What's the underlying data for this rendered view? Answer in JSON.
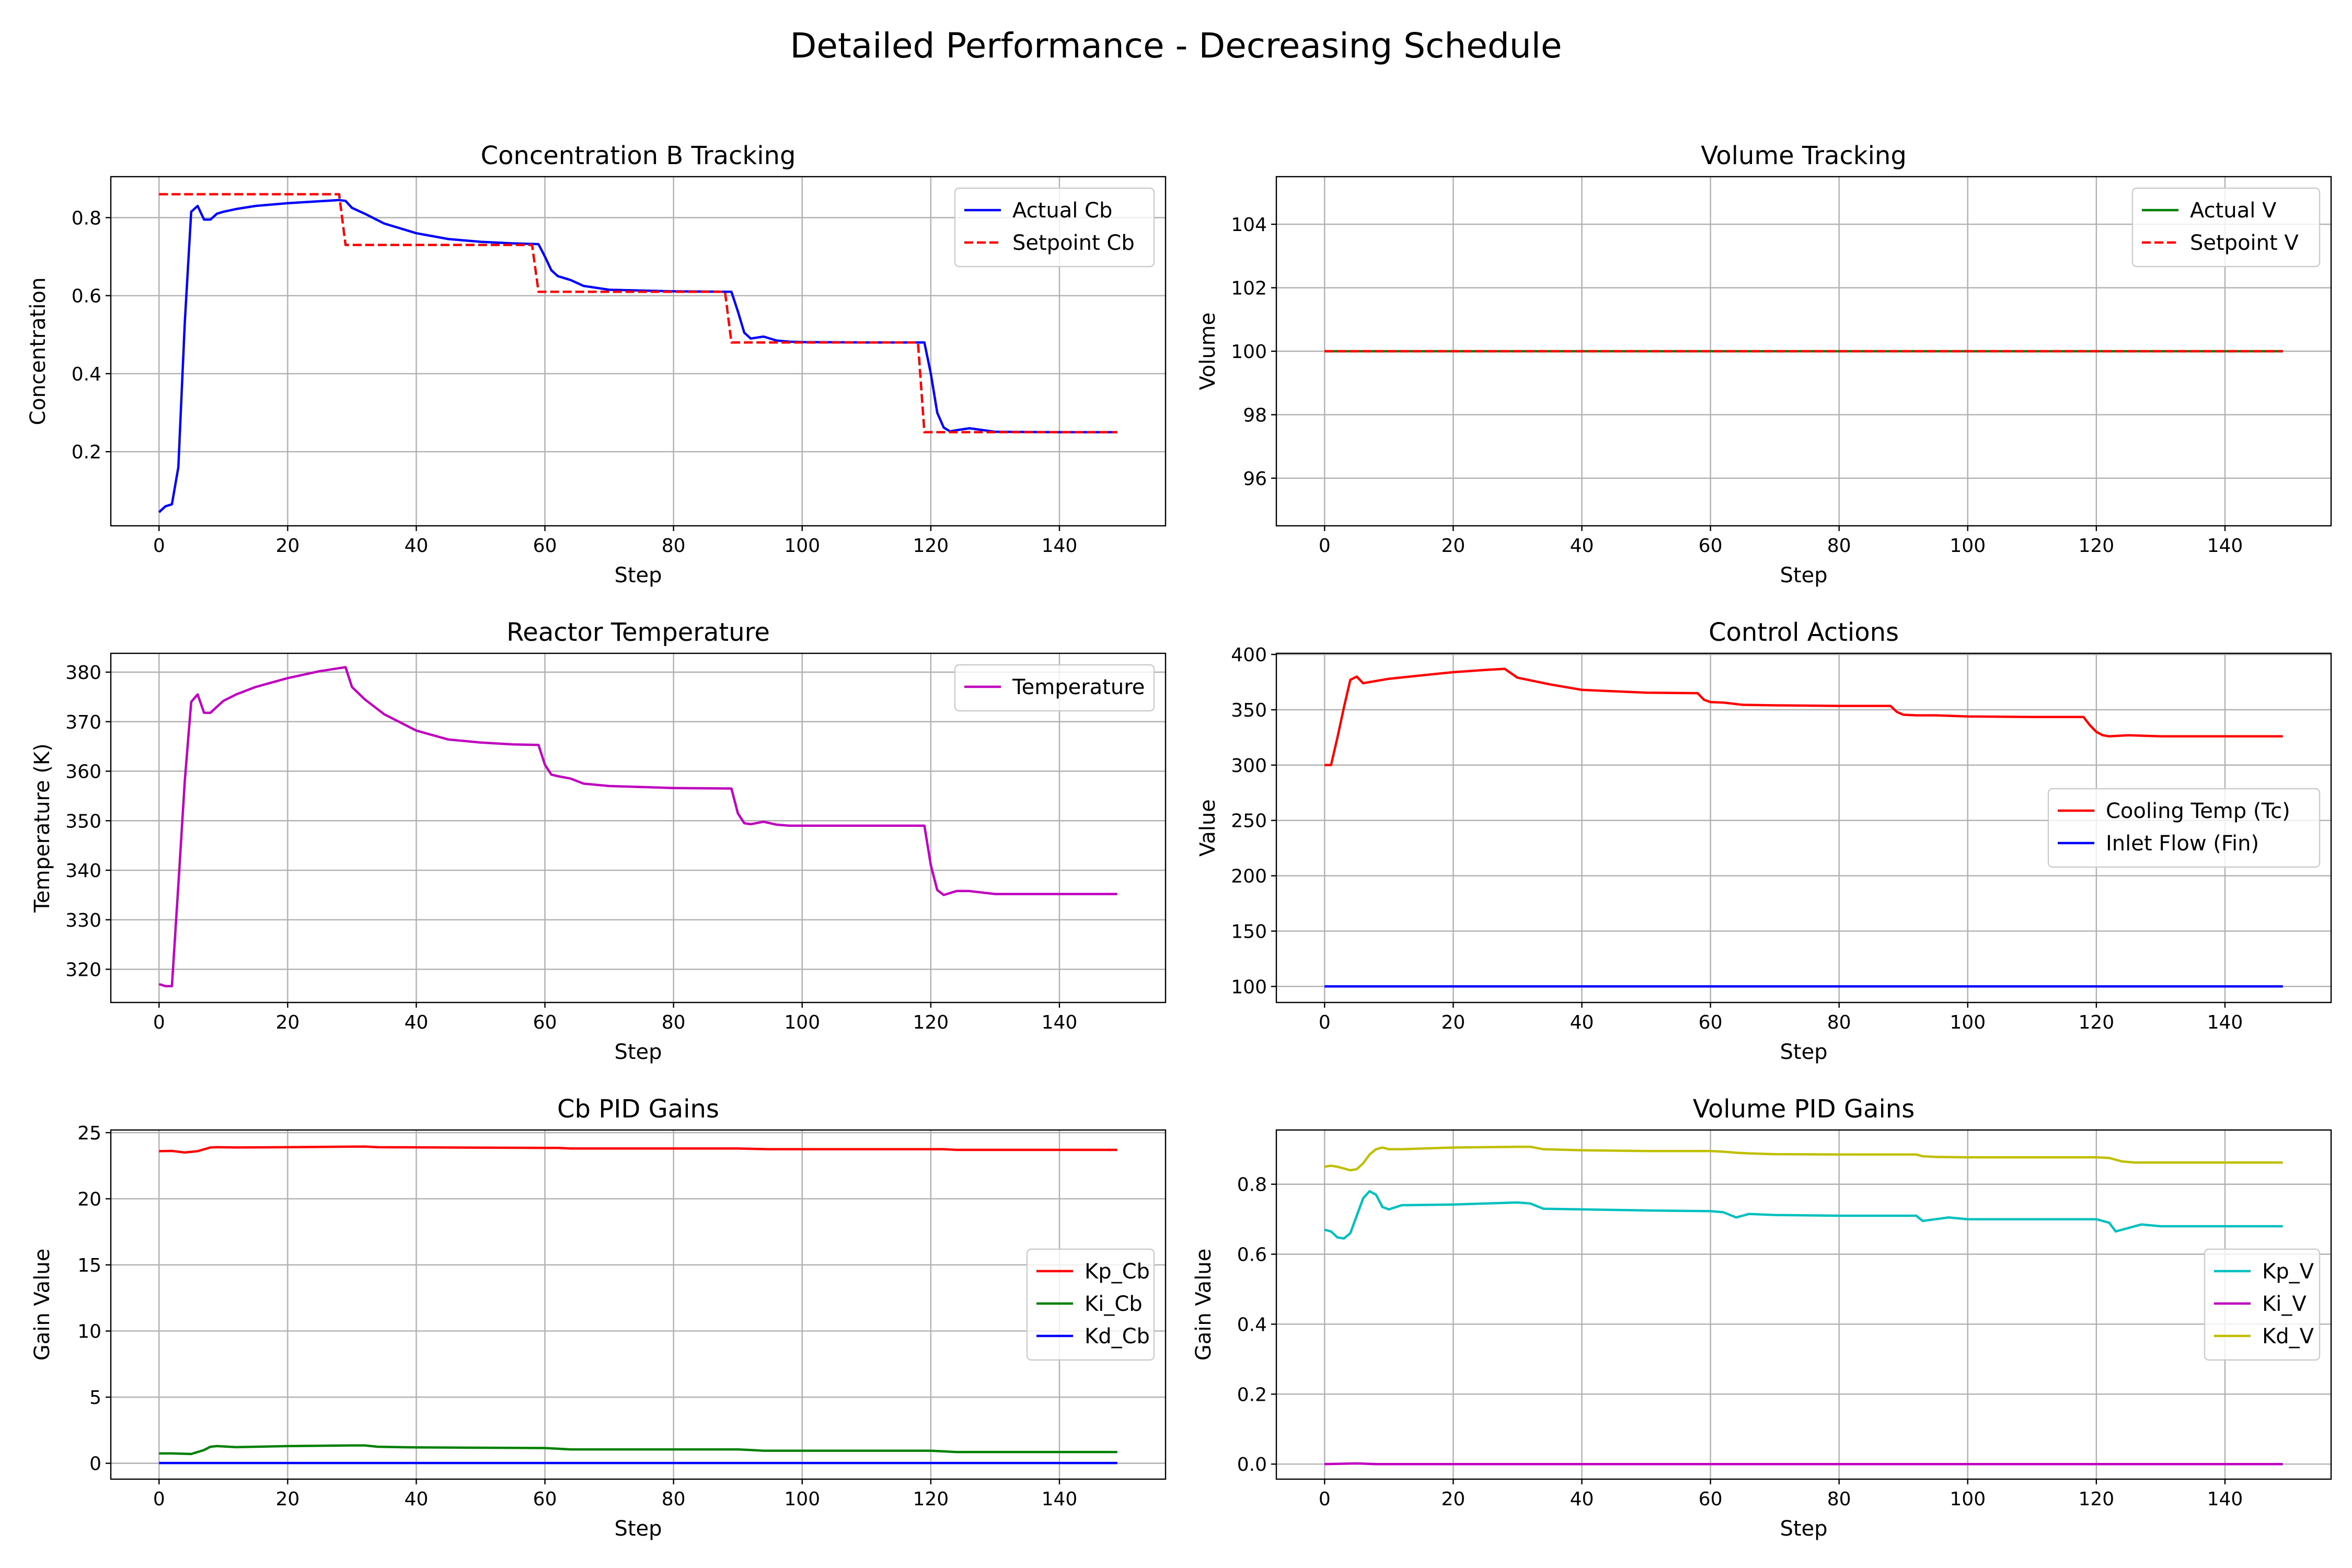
{
  "figure": {
    "suptitle": "Detailed Performance - Decreasing Schedule"
  },
  "chart_data": [
    {
      "type": "line",
      "title": "Concentration B Tracking",
      "xlabel": "Step",
      "ylabel": "Concentration",
      "xlim": [
        -7.5,
        156.5
      ],
      "ylim": [
        0.01,
        0.905
      ],
      "xticks": [
        0,
        20,
        40,
        60,
        80,
        100,
        120,
        140
      ],
      "yticks": [
        0.2,
        0.4,
        0.6,
        0.8
      ],
      "ytick_decimals": 1,
      "grid": true,
      "legend_position": "upper right",
      "series": [
        {
          "name": "Actual Cb",
          "color": "#0000ff",
          "dash": "solid",
          "x": [
            0,
            1,
            2,
            3,
            4,
            5,
            6,
            7,
            8,
            9,
            10,
            12,
            15,
            20,
            25,
            28,
            29,
            30,
            32,
            35,
            40,
            45,
            50,
            55,
            59,
            60,
            61,
            62,
            64,
            66,
            70,
            80,
            89,
            90,
            91,
            92,
            94,
            96,
            98,
            100,
            110,
            119,
            120,
            121,
            122,
            123,
            124,
            126,
            130,
            140,
            149
          ],
          "y": [
            0.045,
            0.06,
            0.065,
            0.16,
            0.53,
            0.815,
            0.83,
            0.795,
            0.795,
            0.81,
            0.815,
            0.822,
            0.83,
            0.837,
            0.842,
            0.845,
            0.843,
            0.825,
            0.81,
            0.785,
            0.76,
            0.745,
            0.738,
            0.734,
            0.732,
            0.7,
            0.665,
            0.65,
            0.64,
            0.625,
            0.615,
            0.611,
            0.61,
            0.56,
            0.505,
            0.49,
            0.495,
            0.485,
            0.482,
            0.481,
            0.48,
            0.48,
            0.4,
            0.3,
            0.262,
            0.252,
            0.255,
            0.26,
            0.251,
            0.25,
            0.25
          ]
        },
        {
          "name": "Setpoint Cb",
          "color": "#ff0000",
          "dash": "dashed",
          "x": [
            0,
            28,
            29,
            58,
            59,
            88,
            89,
            118,
            119,
            149
          ],
          "y": [
            0.86,
            0.86,
            0.73,
            0.73,
            0.61,
            0.61,
            0.48,
            0.48,
            0.25,
            0.25
          ]
        }
      ]
    },
    {
      "type": "line",
      "title": "Volume Tracking",
      "xlabel": "Step",
      "ylabel": "Volume",
      "xlim": [
        -7.5,
        156.5
      ],
      "ylim": [
        94.5,
        105.5
      ],
      "xticks": [
        0,
        20,
        40,
        60,
        80,
        100,
        120,
        140
      ],
      "yticks": [
        96,
        98,
        100,
        102,
        104
      ],
      "ytick_decimals": 0,
      "grid": true,
      "legend_position": "upper right",
      "series": [
        {
          "name": "Actual V",
          "color": "#008000",
          "dash": "solid",
          "x": [
            0,
            149
          ],
          "y": [
            100,
            100
          ]
        },
        {
          "name": "Setpoint V",
          "color": "#ff0000",
          "dash": "dashed",
          "x": [
            0,
            149
          ],
          "y": [
            100,
            100
          ]
        }
      ]
    },
    {
      "type": "line",
      "title": "Reactor Temperature",
      "xlabel": "Step",
      "ylabel": "Temperature (K)",
      "xlim": [
        -7.5,
        156.5
      ],
      "ylim": [
        313.3,
        383.8
      ],
      "xticks": [
        0,
        20,
        40,
        60,
        80,
        100,
        120,
        140
      ],
      "yticks": [
        320,
        330,
        340,
        350,
        360,
        370,
        380
      ],
      "ytick_decimals": 0,
      "grid": true,
      "legend_position": "upper right",
      "series": [
        {
          "name": "Temperature",
          "color": "#bf00bf",
          "dash": "solid",
          "x": [
            0,
            1,
            2,
            3,
            4,
            5,
            6,
            7,
            8,
            9,
            10,
            12,
            15,
            20,
            25,
            28,
            29,
            30,
            32,
            35,
            40,
            45,
            50,
            55,
            59,
            60,
            61,
            62,
            64,
            66,
            70,
            80,
            89,
            90,
            91,
            92,
            94,
            96,
            98,
            100,
            110,
            119,
            120,
            121,
            122,
            123,
            124,
            126,
            130,
            140,
            149
          ],
          "y": [
            317,
            316.6,
            316.6,
            337,
            358,
            374,
            375.5,
            371.8,
            371.8,
            373,
            374.2,
            375.5,
            377,
            378.8,
            380.2,
            380.8,
            381,
            377,
            374.5,
            371.5,
            368.2,
            366.4,
            365.8,
            365.4,
            365.3,
            361.3,
            359.3,
            359,
            358.5,
            357.5,
            357,
            356.6,
            356.5,
            351.5,
            349.5,
            349.3,
            349.8,
            349.2,
            349,
            349,
            349,
            349,
            341,
            336,
            335,
            335.4,
            335.8,
            335.8,
            335.2,
            335.2,
            335.2
          ]
        }
      ]
    },
    {
      "type": "line",
      "title": "Control Actions",
      "xlabel": "Step",
      "ylabel": "Value",
      "xlim": [
        -7.5,
        156.5
      ],
      "ylim": [
        85.5,
        401
      ],
      "xticks": [
        0,
        20,
        40,
        60,
        80,
        100,
        120,
        140
      ],
      "yticks": [
        100,
        150,
        200,
        250,
        300,
        350,
        400
      ],
      "ytick_decimals": 0,
      "grid": true,
      "legend_position": "center right",
      "series": [
        {
          "name": "Cooling Temp (Tc)",
          "color": "#ff0000",
          "dash": "solid",
          "x": [
            0,
            1,
            2,
            3,
            4,
            5,
            6,
            7,
            10,
            15,
            20,
            25,
            28,
            29,
            30,
            35,
            40,
            50,
            58,
            59,
            60,
            62,
            65,
            70,
            80,
            88,
            89,
            90,
            92,
            95,
            100,
            110,
            118,
            119,
            120,
            121,
            122,
            125,
            130,
            140,
            149
          ],
          "y": [
            300,
            300,
            325,
            352,
            377,
            380,
            374,
            375,
            378,
            381,
            384,
            386,
            387,
            383,
            379,
            373,
            368,
            365.5,
            365,
            359,
            357,
            356.5,
            354.5,
            354,
            353.5,
            353.5,
            348,
            345.5,
            345,
            345,
            344,
            343.5,
            343.5,
            336,
            330,
            327,
            326,
            327,
            326,
            326,
            326
          ]
        },
        {
          "name": "Inlet Flow (Fin)",
          "color": "#0000ff",
          "dash": "solid",
          "x": [
            0,
            149
          ],
          "y": [
            100,
            100
          ]
        }
      ]
    },
    {
      "type": "line",
      "title": "Cb PID Gains",
      "xlabel": "Step",
      "ylabel": "Gain Value",
      "xlim": [
        -7.5,
        156.5
      ],
      "ylim": [
        -1.2,
        25.2
      ],
      "xticks": [
        0,
        20,
        40,
        60,
        80,
        100,
        120,
        140
      ],
      "yticks": [
        0,
        5,
        10,
        15,
        20,
        25
      ],
      "ytick_decimals": 0,
      "grid": true,
      "legend_position": "center right",
      "series": [
        {
          "name": "Kp_Cb",
          "color": "#ff0000",
          "dash": "solid",
          "x": [
            0,
            2,
            4,
            6,
            8,
            9,
            12,
            20,
            32,
            34,
            60,
            62,
            64,
            90,
            93,
            95,
            120,
            122,
            124,
            149
          ],
          "y": [
            23.6,
            23.62,
            23.5,
            23.6,
            23.88,
            23.9,
            23.88,
            23.9,
            23.95,
            23.9,
            23.85,
            23.85,
            23.8,
            23.8,
            23.77,
            23.75,
            23.75,
            23.75,
            23.7,
            23.7
          ]
        },
        {
          "name": "Ki_Cb",
          "color": "#008000",
          "dash": "solid",
          "x": [
            0,
            2,
            5,
            7,
            8,
            9,
            12,
            20,
            30,
            32,
            34,
            40,
            60,
            62,
            64,
            90,
            92,
            94,
            120,
            122,
            124,
            149
          ],
          "y": [
            0.75,
            0.75,
            0.7,
            1.0,
            1.25,
            1.3,
            1.22,
            1.3,
            1.35,
            1.35,
            1.25,
            1.2,
            1.15,
            1.1,
            1.05,
            1.05,
            1.0,
            0.95,
            0.95,
            0.9,
            0.85,
            0.85
          ]
        },
        {
          "name": "Kd_Cb",
          "color": "#0000ff",
          "dash": "solid",
          "x": [
            0,
            149
          ],
          "y": [
            0.02,
            0.02
          ]
        }
      ]
    },
    {
      "type": "line",
      "title": "Volume PID Gains",
      "xlabel": "Step",
      "ylabel": "Gain Value",
      "xlim": [
        -7.5,
        156.5
      ],
      "ylim": [
        -0.043,
        0.955
      ],
      "xticks": [
        0,
        20,
        40,
        60,
        80,
        100,
        120,
        140
      ],
      "yticks": [
        0.0,
        0.2,
        0.4,
        0.6,
        0.8
      ],
      "ytick_decimals": 1,
      "grid": true,
      "legend_position": "center right",
      "series": [
        {
          "name": "Kp_V",
          "color": "#00bfbf",
          "dash": "solid",
          "x": [
            0,
            1,
            2,
            3,
            4,
            5,
            6,
            7,
            8,
            9,
            10,
            12,
            20,
            30,
            32,
            34,
            40,
            50,
            60,
            62,
            64,
            66,
            70,
            80,
            92,
            93,
            95,
            97,
            100,
            120,
            122,
            123,
            125,
            127,
            130,
            149
          ],
          "y": [
            0.67,
            0.665,
            0.648,
            0.645,
            0.66,
            0.71,
            0.76,
            0.78,
            0.77,
            0.735,
            0.728,
            0.74,
            0.742,
            0.748,
            0.745,
            0.73,
            0.728,
            0.725,
            0.723,
            0.72,
            0.705,
            0.715,
            0.712,
            0.71,
            0.71,
            0.695,
            0.7,
            0.705,
            0.7,
            0.7,
            0.69,
            0.665,
            0.675,
            0.685,
            0.68,
            0.68
          ]
        },
        {
          "name": "Ki_V",
          "color": "#bf00bf",
          "dash": "solid",
          "x": [
            0,
            5,
            8,
            149
          ],
          "y": [
            0.0,
            0.002,
            0.0,
            0.0
          ]
        },
        {
          "name": "Kd_V",
          "color": "#bfbf00",
          "dash": "solid",
          "x": [
            0,
            1,
            2,
            3,
            4,
            5,
            6,
            7,
            8,
            9,
            10,
            12,
            20,
            30,
            32,
            34,
            40,
            50,
            60,
            62,
            64,
            66,
            70,
            80,
            92,
            93,
            95,
            100,
            120,
            122,
            124,
            126,
            130,
            149
          ],
          "y": [
            0.85,
            0.853,
            0.85,
            0.845,
            0.84,
            0.843,
            0.86,
            0.885,
            0.9,
            0.905,
            0.9,
            0.9,
            0.905,
            0.907,
            0.907,
            0.9,
            0.897,
            0.895,
            0.895,
            0.893,
            0.89,
            0.888,
            0.886,
            0.885,
            0.885,
            0.88,
            0.878,
            0.877,
            0.877,
            0.875,
            0.865,
            0.862,
            0.862,
            0.862
          ]
        }
      ]
    }
  ]
}
